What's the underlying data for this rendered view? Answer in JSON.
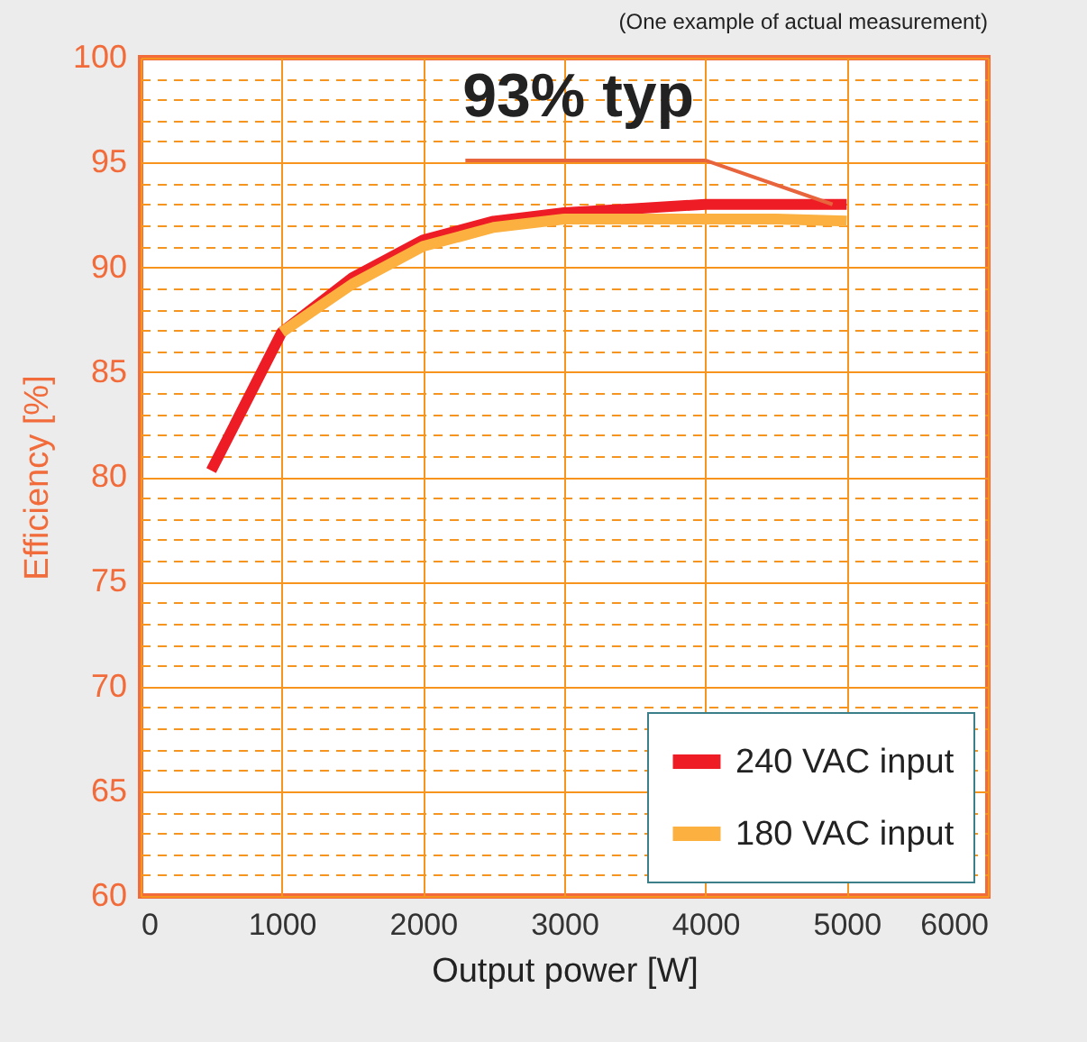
{
  "chart_data": {
    "type": "line",
    "xlabel": "Output power [W]",
    "ylabel": "Efficiency [%]",
    "annotations": [
      "(One example of actual measurement)",
      {
        "text": "93% typ",
        "x": 4900,
        "y": 93
      }
    ],
    "x": [
      500,
      1000,
      1500,
      2000,
      2500,
      3000,
      3500,
      4000,
      4500,
      5000
    ],
    "series": [
      {
        "name": "240 VAC input",
        "color": "#ee1c25",
        "values": [
          80.3,
          86.9,
          89.5,
          91.3,
          92.2,
          92.6,
          92.8,
          93.0,
          93.0,
          93.0
        ]
      },
      {
        "name": "180 VAC input",
        "color": "#fbb040",
        "values": [
          null,
          86.9,
          89.2,
          91.0,
          91.9,
          92.3,
          92.3,
          92.3,
          92.3,
          92.2
        ]
      }
    ],
    "xlim": [
      0,
      6000
    ],
    "xticks": [
      0,
      1000,
      2000,
      3000,
      4000,
      5000,
      6000
    ],
    "ylim": [
      60,
      100
    ],
    "yticks": [
      60,
      {
        "value": 61,
        "label": null
      },
      {
        "value": 62,
        "label": null
      },
      {
        "value": 63,
        "label": null
      },
      {
        "value": 64,
        "label": null
      },
      65,
      {
        "value": 66,
        "label": null
      },
      {
        "value": 67,
        "label": null
      },
      {
        "value": 68,
        "label": null
      },
      {
        "value": 69,
        "label": null
      },
      70,
      {
        "value": 71,
        "label": null
      },
      {
        "value": 72,
        "label": null
      },
      {
        "value": 73,
        "label": null
      },
      {
        "value": 74,
        "label": null
      },
      75,
      {
        "value": 76,
        "label": null
      },
      {
        "value": 77,
        "label": null
      },
      {
        "value": 78,
        "label": null
      },
      {
        "value": 79,
        "label": null
      },
      80,
      {
        "value": 81,
        "label": null
      },
      {
        "value": 82,
        "label": null
      },
      {
        "value": 83,
        "label": null
      },
      {
        "value": 84,
        "label": null
      },
      85,
      {
        "value": 86,
        "label": null
      },
      {
        "value": 87,
        "label": null
      },
      {
        "value": 88,
        "label": null
      },
      {
        "value": 89,
        "label": null
      },
      90,
      {
        "value": 91,
        "label": null
      },
      {
        "value": 92,
        "label": null
      },
      {
        "value": 93,
        "label": null
      },
      {
        "value": 94,
        "label": null
      },
      95,
      {
        "value": 96,
        "label": null
      },
      {
        "value": 97,
        "label": null
      },
      {
        "value": 98,
        "label": null
      },
      {
        "value": 99,
        "label": null
      },
      100
    ],
    "grid": true,
    "legend": "bottom right",
    "line_style": "solid"
  }
}
